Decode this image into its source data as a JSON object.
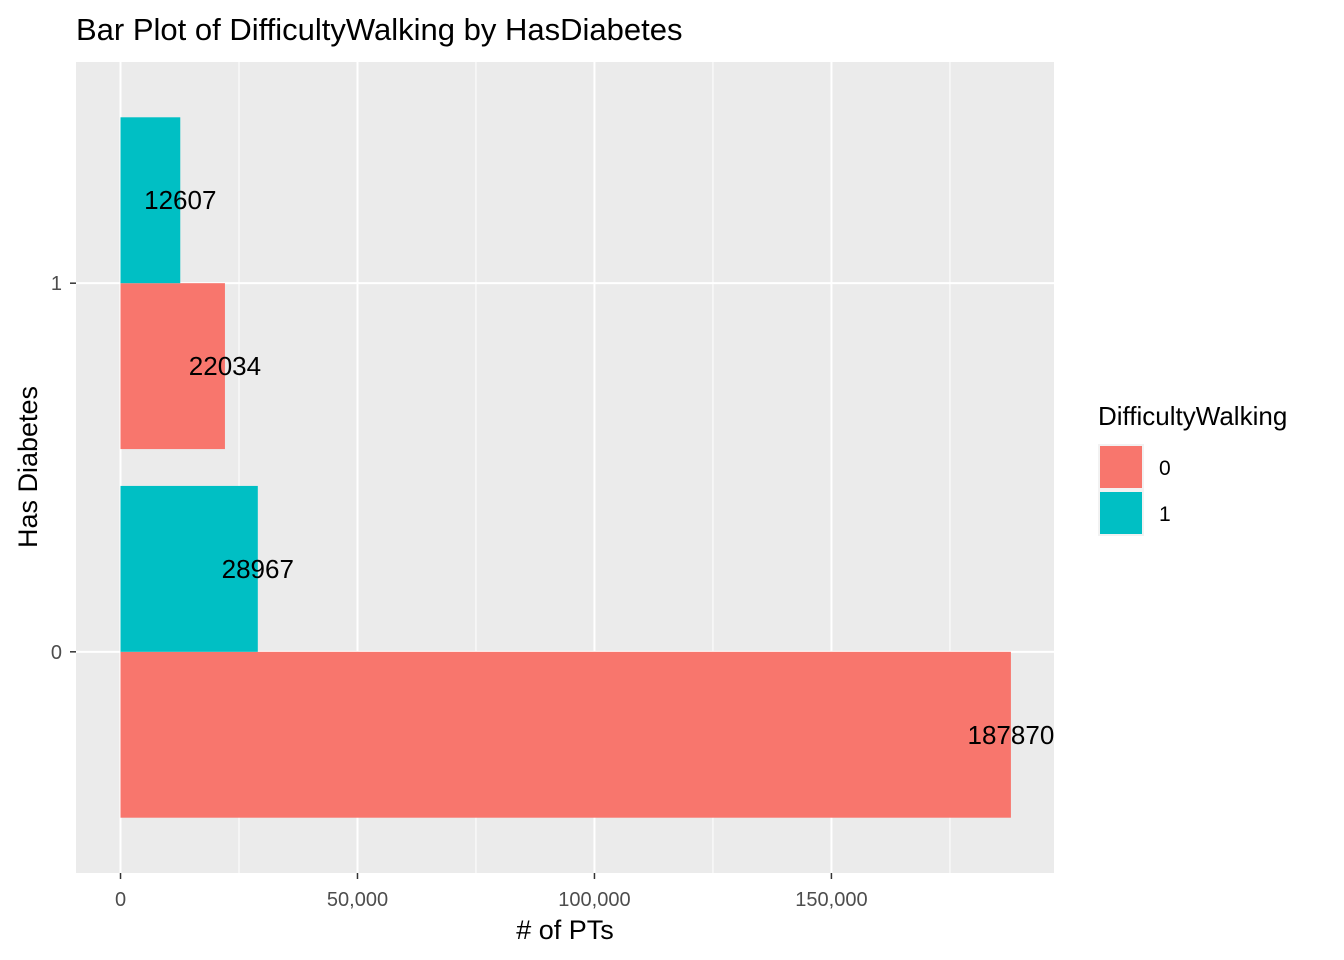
{
  "chart_data": {
    "type": "bar",
    "orientation": "horizontal",
    "position": "dodge",
    "title": "Bar Plot of DifficultyWalking by HasDiabetes",
    "xlabel": "# of PTs",
    "ylabel": "Has Diabetes",
    "categories": [
      "0",
      "1"
    ],
    "x_ticks": [
      0,
      50000,
      100000,
      150000
    ],
    "x_tick_labels": [
      "0",
      "50,000",
      "100,000",
      "150,000"
    ],
    "xlim": [
      -9393,
      196963
    ],
    "grid": true,
    "legend": {
      "title": "DifficultyWalking",
      "placement": "right"
    },
    "series": [
      {
        "name": "0",
        "color": "#F8766D",
        "values": [
          187870,
          22034
        ],
        "labels": [
          "187870",
          "22034"
        ]
      },
      {
        "name": "1",
        "color": "#00BFC4",
        "values": [
          28967,
          12607
        ],
        "labels": [
          "28967",
          "12607"
        ]
      }
    ]
  }
}
